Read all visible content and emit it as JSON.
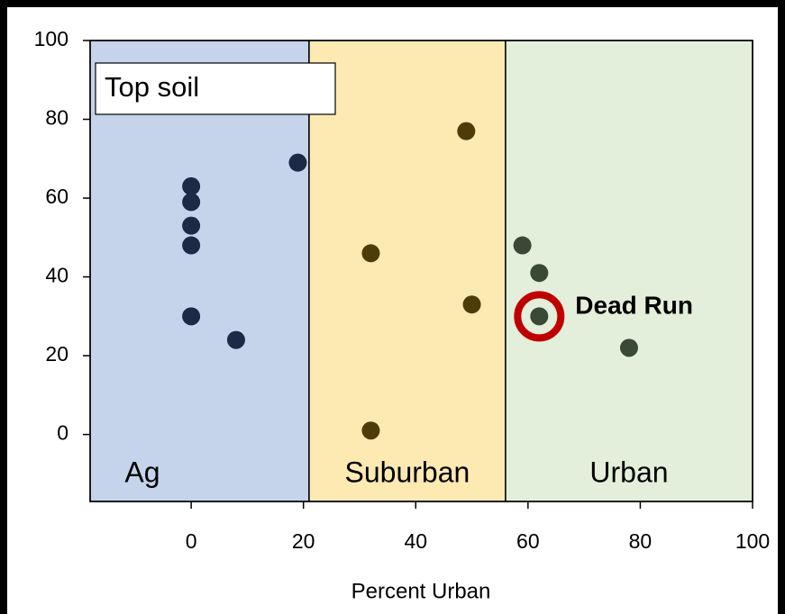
{
  "chart_data": {
    "type": "scatter",
    "x_label": "Percent Urban",
    "xlim": [
      -18,
      100
    ],
    "ylim": [
      -17,
      100
    ],
    "xticks": [
      0,
      20,
      40,
      60,
      80,
      100
    ],
    "yticks": [
      0,
      20,
      40,
      60,
      80,
      100
    ],
    "legend_box": "Top soil",
    "regions": [
      {
        "name": "Ag",
        "range": [
          -18,
          21
        ],
        "color": "#c5d3eb"
      },
      {
        "name": "Suburban",
        "range": [
          21,
          56
        ],
        "color": "#fde9b2"
      },
      {
        "name": "Urban",
        "range": [
          56,
          100
        ],
        "color": "#e3efda"
      }
    ],
    "series": [
      {
        "color": "#1c2a47",
        "x": [
          0,
          0,
          0,
          0,
          0,
          8,
          19
        ],
        "values": [
          63,
          59,
          53,
          48,
          30,
          24,
          69
        ]
      },
      {
        "color": "#4d3c0a",
        "x": [
          32,
          49,
          50,
          32
        ],
        "values": [
          46,
          77,
          33,
          1
        ]
      },
      {
        "color": "#394935",
        "x": [
          59,
          62,
          62,
          78
        ],
        "values": [
          48,
          41,
          30,
          22
        ]
      }
    ],
    "annotation": {
      "text": "Dead Run",
      "x": 62,
      "y": 30,
      "color": "#c00000"
    }
  }
}
